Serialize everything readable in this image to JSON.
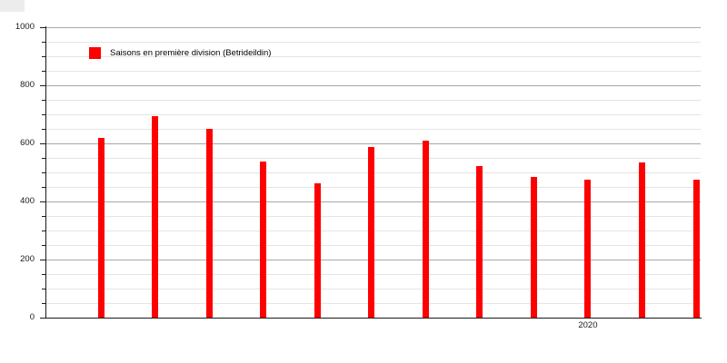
{
  "chart_data": {
    "type": "bar",
    "title": "",
    "legend": {
      "label": "Saisons en première division (Betrideildin)",
      "position": "top-left"
    },
    "values": [
      620,
      695,
      650,
      538,
      462,
      588,
      610,
      522,
      485,
      475,
      535,
      475
    ],
    "x_tick_labels": [
      "",
      "",
      "",
      "",
      "",
      "",
      "",
      "",
      "",
      "2020",
      "",
      ""
    ],
    "xlabel": "",
    "ylabel": "",
    "ylim": [
      0,
      1000
    ],
    "y_major_ticks": [
      0,
      200,
      400,
      600,
      800,
      1000
    ],
    "y_minor_step": 50,
    "grid": true,
    "colors": {
      "bar": "#ff0000",
      "major_grid": "#a8a8a8",
      "minor_grid": "#e4e4e4",
      "axis": "#1a1a1a",
      "corner_artifact": "#ececec"
    }
  }
}
